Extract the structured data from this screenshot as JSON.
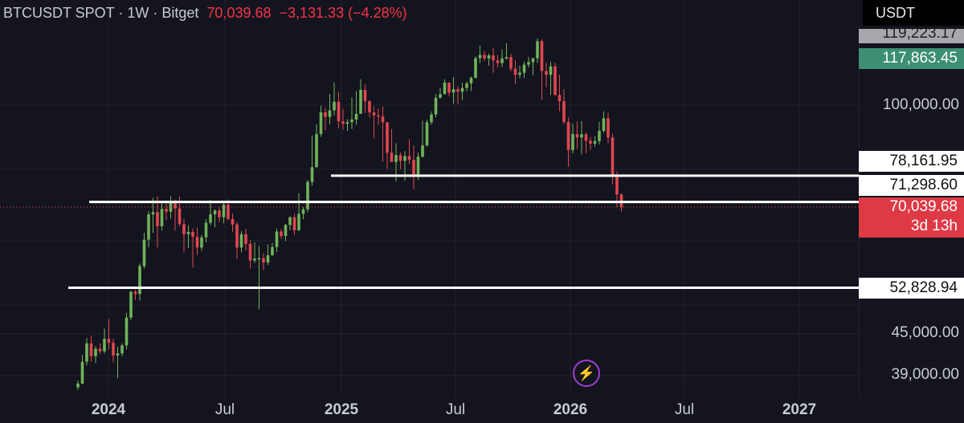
{
  "header": {
    "symbol": "BTCUSDT SPOT · 1W · Bitget",
    "price": "70,039.68",
    "change": "−3,131.33 (−4.28%)"
  },
  "price_scale": {
    "currency": "USDT",
    "labels": [
      "100,000.00",
      "45,000.00",
      "39,000.00"
    ],
    "tags": {
      "upper": "119,223.17",
      "green": "117,863.45",
      "level_1": "78,161.95",
      "level_2": "71,298.60",
      "last_price": "70,039.68",
      "countdown": "3d 13h",
      "level_3": "52,828.94"
    }
  },
  "time_axis": {
    "labels": [
      "2024",
      "Jul",
      "2025",
      "Jul",
      "2026",
      "Jul",
      "2027"
    ]
  },
  "colors": {
    "background": "#14141f",
    "up": "#6fb35a",
    "down": "#e0474f",
    "level_line": "#ffffff",
    "last_price_line": "#e0474f"
  },
  "icons": {
    "bolt": "lightning-bolt-icon"
  },
  "chart_data": {
    "type": "candlestick",
    "title": "BTCUSDT SPOT · 1W · Bitget",
    "interval": "1W",
    "y_scale": "log",
    "x_labels": [
      "2024",
      "Jul",
      "2025",
      "Jul",
      "2026",
      "Jul",
      "2027"
    ],
    "grid": true,
    "horizontal_levels": [
      78161.95,
      71298.6,
      52828.94
    ],
    "last_price": 70039.68,
    "series": [
      {
        "name": "BTCUSDT",
        "candles_ohlc": [
          [
            37300,
            38200,
            37000,
            37800
          ],
          [
            37800,
            41800,
            37700,
            40800
          ],
          [
            40800,
            44300,
            40300,
            43500
          ],
          [
            43500,
            44700,
            40800,
            41600
          ],
          [
            41600,
            43100,
            40600,
            42700
          ],
          [
            42700,
            43500,
            41900,
            42300
          ],
          [
            42300,
            45800,
            42000,
            44200
          ],
          [
            44200,
            47400,
            42600,
            43600
          ],
          [
            43600,
            44200,
            40700,
            41700
          ],
          [
            41700,
            43000,
            38500,
            42000
          ],
          [
            42000,
            43500,
            41600,
            43200
          ],
          [
            43200,
            48400,
            42600,
            47600
          ],
          [
            47600,
            52300,
            47200,
            52100
          ],
          [
            52100,
            52500,
            50600,
            51700
          ],
          [
            51700,
            57500,
            50500,
            57000
          ],
          [
            57000,
            64000,
            56500,
            62500
          ],
          [
            62500,
            69000,
            60900,
            68300
          ],
          [
            68300,
            72300,
            64000,
            68800
          ],
          [
            68800,
            72800,
            60800,
            65500
          ],
          [
            65500,
            71100,
            64500,
            69600
          ],
          [
            69600,
            71700,
            66900,
            68900
          ],
          [
            68900,
            72800,
            67300,
            71300
          ],
          [
            71300,
            71900,
            64500,
            69700
          ],
          [
            69700,
            72700,
            65500,
            66000
          ],
          [
            66000,
            67200,
            59800,
            63700
          ],
          [
            63700,
            65700,
            60700,
            64200
          ],
          [
            64200,
            65000,
            56700,
            63100
          ],
          [
            63100,
            65200,
            59200,
            60800
          ],
          [
            60800,
            63500,
            60100,
            63000
          ],
          [
            63000,
            67100,
            61900,
            66300
          ],
          [
            66300,
            71800,
            65800,
            68300
          ],
          [
            68300,
            69500,
            65300,
            69200
          ],
          [
            69200,
            70000,
            66400,
            67600
          ],
          [
            67600,
            71300,
            66200,
            70600
          ],
          [
            70600,
            71900,
            66900,
            67200
          ],
          [
            67200,
            68500,
            64200,
            65900
          ],
          [
            65900,
            66500,
            58400,
            60800
          ],
          [
            60800,
            64400,
            59800,
            63700
          ],
          [
            63700,
            64900,
            60200,
            61600
          ],
          [
            61600,
            62400,
            56500,
            58100
          ],
          [
            58100,
            61900,
            57600,
            58500
          ],
          [
            58500,
            61100,
            49000,
            58600
          ],
          [
            58600,
            59600,
            56200,
            57700
          ],
          [
            57700,
            61500,
            57200,
            59200
          ],
          [
            59200,
            61800,
            59000,
            60900
          ],
          [
            60900,
            65000,
            59800,
            64300
          ],
          [
            64300,
            64900,
            62700,
            63300
          ],
          [
            63300,
            66000,
            62200,
            65800
          ],
          [
            65800,
            67800,
            64600,
            67600
          ],
          [
            67600,
            68400,
            63500,
            64600
          ],
          [
            64600,
            73500,
            64400,
            68400
          ],
          [
            68400,
            70000,
            67100,
            69500
          ],
          [
            69500,
            77000,
            68800,
            76500
          ],
          [
            76500,
            90000,
            75500,
            80500
          ],
          [
            80500,
            93500,
            80400,
            90400
          ],
          [
            90400,
            99800,
            89500,
            97500
          ],
          [
            97500,
            99000,
            91500,
            96000
          ],
          [
            96000,
            104000,
            93500,
            98200
          ],
          [
            98200,
            108300,
            96500,
            101200
          ],
          [
            101200,
            104700,
            92200,
            94500
          ],
          [
            94500,
            98700,
            91800,
            93700
          ],
          [
            93700,
            95200,
            91400,
            94200
          ],
          [
            94200,
            102700,
            92000,
            95100
          ],
          [
            95100,
            105000,
            93300,
            97000
          ],
          [
            97000,
            109500,
            99900,
            105500
          ],
          [
            105500,
            107500,
            97300,
            101400
          ],
          [
            101400,
            101700,
            95800,
            97500
          ],
          [
            97500,
            99500,
            89000,
            96500
          ],
          [
            96500,
            98900,
            93400,
            96100
          ],
          [
            96100,
            99500,
            82000,
            94200
          ],
          [
            94200,
            93800,
            80000,
            84700
          ],
          [
            84700,
            92000,
            82500,
            82000
          ],
          [
            82000,
            87500,
            76600,
            84000
          ],
          [
            84000,
            84800,
            80000,
            82300
          ],
          [
            82300,
            85200,
            76800,
            83700
          ],
          [
            83700,
            88800,
            81300,
            82600
          ],
          [
            82600,
            86900,
            74500,
            78500
          ],
          [
            78500,
            84700,
            77000,
            83500
          ],
          [
            83500,
            94700,
            83300,
            86900
          ],
          [
            86900,
            95000,
            86500,
            94200
          ],
          [
            94200,
            97900,
            93400,
            96800
          ],
          [
            96800,
            104000,
            95800,
            102600
          ],
          [
            102600,
            106300,
            102400,
            103900
          ],
          [
            103900,
            109500,
            106400,
            108200
          ],
          [
            108200,
            106800,
            103200,
            104500
          ],
          [
            104500,
            110300,
            100500,
            105700
          ],
          [
            105700,
            106900,
            100300,
            104800
          ],
          [
            104800,
            108200,
            101700,
            106200
          ],
          [
            106200,
            108600,
            105000,
            107900
          ],
          [
            107900,
            110500,
            105100,
            110000
          ],
          [
            110000,
            118600,
            109800,
            117800
          ],
          [
            117800,
            123200,
            115800,
            119200
          ],
          [
            119200,
            120800,
            116500,
            117700
          ],
          [
            117700,
            119800,
            114800,
            119000
          ],
          [
            119000,
            122200,
            112000,
            116900
          ],
          [
            116900,
            119200,
            114000,
            115800
          ],
          [
            115800,
            121500,
            114200,
            117700
          ],
          [
            117700,
            124200,
            117200,
            118300
          ],
          [
            118300,
            119600,
            112600,
            113600
          ],
          [
            113600,
            117000,
            107500,
            111200
          ],
          [
            111200,
            114800,
            109800,
            112000
          ],
          [
            112000,
            116400,
            110000,
            115200
          ],
          [
            115200,
            118300,
            114000,
            116200
          ],
          [
            116200,
            117900,
            111000,
            117800
          ],
          [
            117800,
            126200,
            115900,
            125000
          ],
          [
            125000,
            125800,
            102000,
            112700
          ],
          [
            112700,
            116000,
            106500,
            111200
          ],
          [
            111200,
            116400,
            103600,
            114500
          ],
          [
            114500,
            116000,
            103500,
            103600
          ],
          [
            103600,
            111200,
            97900,
            101400
          ],
          [
            101400,
            105800,
            93600,
            94300
          ],
          [
            94300,
            95800,
            80600,
            85500
          ],
          [
            85500,
            93800,
            84500,
            90400
          ],
          [
            90400,
            94500,
            85800,
            89300
          ],
          [
            89300,
            94600,
            84200,
            90300
          ],
          [
            90300,
            90900,
            84500,
            88300
          ],
          [
            88300,
            89400,
            85600,
            87400
          ],
          [
            87400,
            89700,
            86500,
            88200
          ],
          [
            88200,
            94300,
            87200,
            91400
          ],
          [
            91400,
            97900,
            90800,
            95500
          ],
          [
            95500,
            97400,
            87500,
            89300
          ],
          [
            89300,
            90600,
            75800,
            78200
          ],
          [
            78200,
            79300,
            70000,
            73200
          ],
          [
            73200,
            73500,
            69000,
            70040
          ]
        ]
      }
    ]
  }
}
